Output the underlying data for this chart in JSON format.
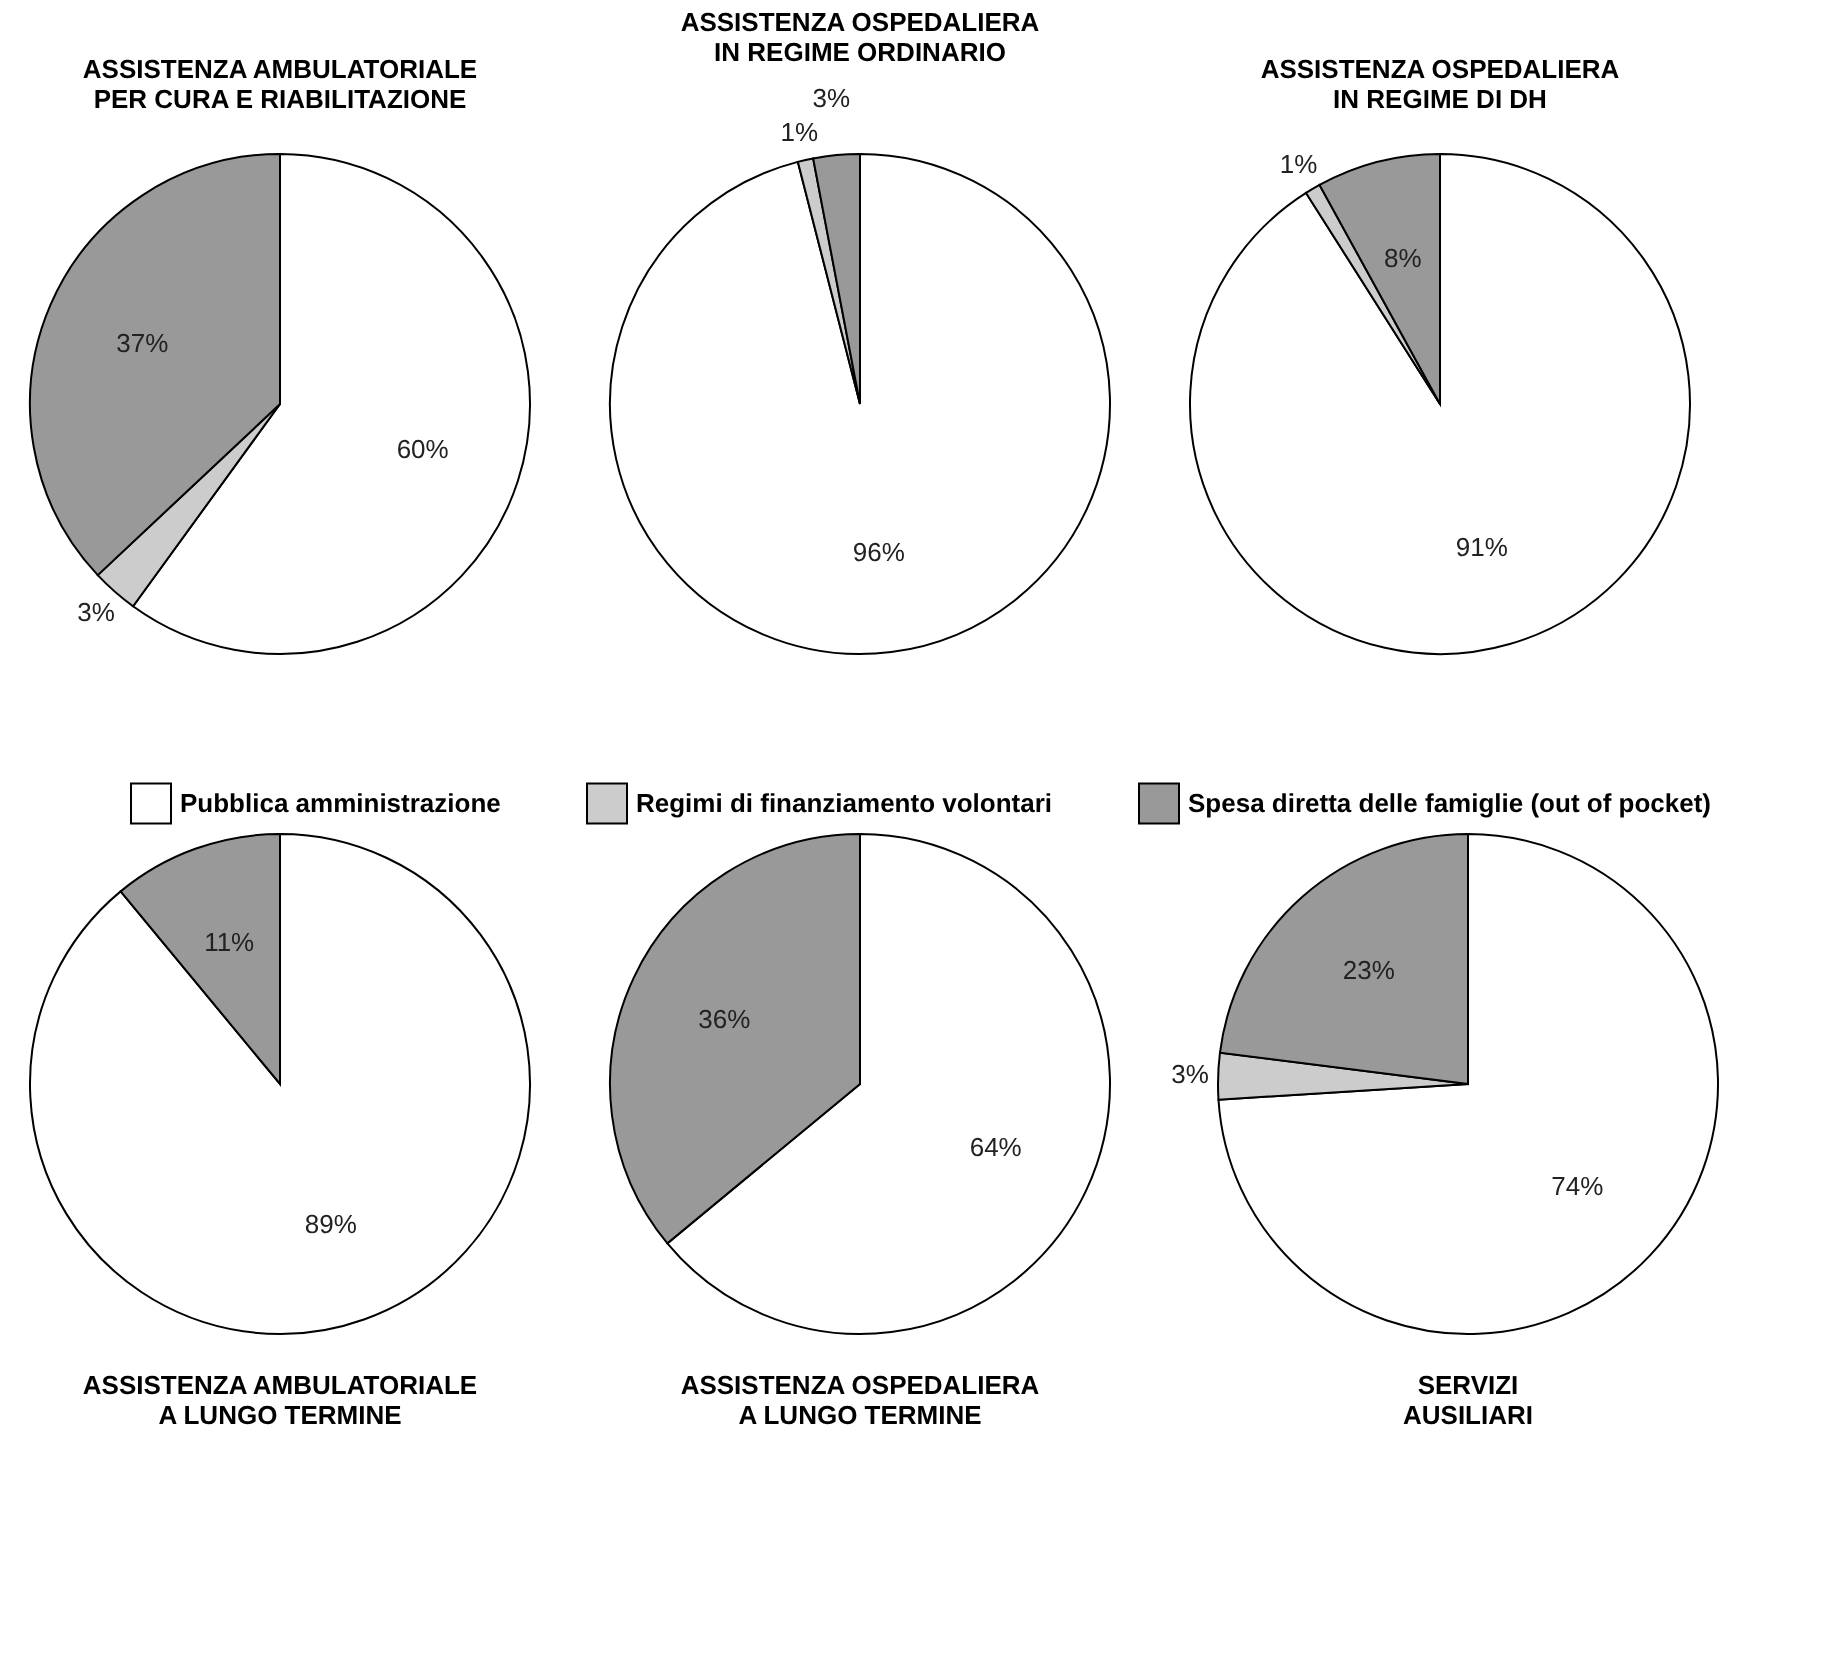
{
  "chart_data": [
    {
      "type": "pie",
      "title": "ASSISTENZA AMBULATORIALE PER CURA E RIABILITAZIONE",
      "categories": [
        "Pubblica amministrazione",
        "Regimi di finanziamento volontari",
        "Spesa diretta delle famiglie (out of pocket)"
      ],
      "values": [
        60,
        3,
        37
      ],
      "value_labels": [
        "60%",
        "3%",
        "37%"
      ],
      "data_labels": true,
      "colors": [
        "#ffffff",
        "#cccccc",
        "#999999"
      ],
      "legend": "bottom"
    },
    {
      "type": "pie",
      "title": "ASSISTENZA OSPEDALIERA IN REGIME ORDINARIO",
      "values": [
        96,
        1,
        3
      ],
      "value_labels": [
        "96%",
        "1%",
        "3%"
      ],
      "data_labels": true,
      "colors": [
        "#ffffff",
        "#cccccc",
        "#999999"
      ]
    },
    {
      "type": "pie",
      "title": "ASSISTENZA OSPEDALIERA IN REGIME DI DH",
      "values": [
        91,
        1,
        8
      ],
      "value_labels": [
        "91%",
        "1%",
        "8%"
      ],
      "data_labels": true,
      "colors": [
        "#ffffff",
        "#cccccc",
        "#999999"
      ]
    },
    {
      "type": "pie",
      "title": "ASSISTENZA AMBULATORIALE A LUNGO TERMINE",
      "values": [
        89,
        null,
        11
      ],
      "value_labels": [
        "89%",
        null,
        "11%"
      ],
      "data_labels": true,
      "colors": [
        "#ffffff",
        "#cccccc",
        "#999999"
      ]
    },
    {
      "type": "pie",
      "title": "ASSISTENZA OSPEDALIERA A LUNGO TERMINE",
      "values": [
        64,
        null,
        36
      ],
      "value_labels": [
        "64%",
        null,
        "36%"
      ],
      "data_labels": true,
      "colors": [
        "#ffffff",
        "#cccccc",
        "#999999"
      ]
    },
    {
      "type": "pie",
      "title": "SERVIZI AUSILIARI",
      "values": [
        74,
        3,
        23
      ],
      "value_labels": [
        "74%",
        "3%",
        "23%"
      ],
      "data_labels": true,
      "colors": [
        "#ffffff",
        "#cccccc",
        "#999999"
      ]
    }
  ]
}
